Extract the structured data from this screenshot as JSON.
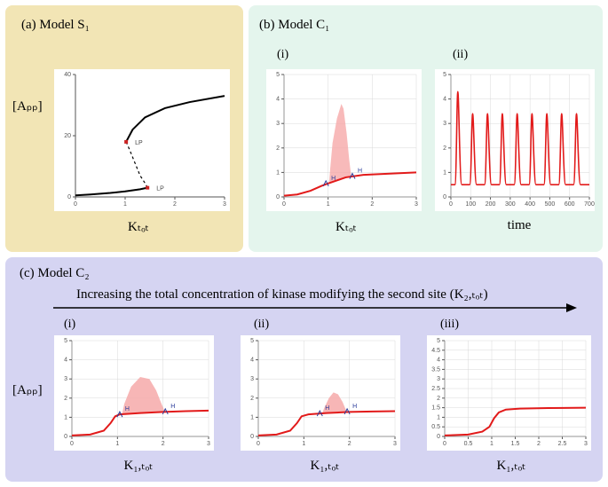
{
  "panel_a": {
    "bg": "#f2e5b5",
    "label": "(a) Model S₁",
    "y_axis": "[Aₚₚ]",
    "x_axis": "Kₜₒₜ",
    "chart": {
      "type": "bifurcation",
      "xlim": [
        0,
        3
      ],
      "ylim": [
        0,
        40
      ],
      "xticks": [
        0,
        1,
        2,
        3
      ],
      "yticks": [
        0,
        20,
        40
      ],
      "line_color": "#000000",
      "line_width": 2,
      "dash_color": "#000000",
      "lp_color": "#cc2222",
      "lp_labels": [
        "LP",
        "LP"
      ],
      "lp_points": [
        [
          1.02,
          18
        ],
        [
          1.45,
          3
        ]
      ],
      "lower_branch": [
        [
          0,
          0.5
        ],
        [
          0.3,
          0.8
        ],
        [
          0.7,
          1.3
        ],
        [
          1.0,
          1.8
        ],
        [
          1.3,
          2.5
        ],
        [
          1.45,
          3.0
        ]
      ],
      "upper_branch": [
        [
          1.02,
          18
        ],
        [
          1.15,
          22
        ],
        [
          1.4,
          26
        ],
        [
          1.8,
          29
        ],
        [
          2.3,
          31
        ],
        [
          3.0,
          33
        ]
      ],
      "dashed": [
        [
          1.02,
          18
        ],
        [
          1.1,
          15
        ],
        [
          1.2,
          11
        ],
        [
          1.3,
          7
        ],
        [
          1.4,
          4.5
        ],
        [
          1.45,
          3
        ]
      ],
      "bg": "#ffffff"
    }
  },
  "panel_b": {
    "bg": "#e4f5ed",
    "label": "(b) Model C₁",
    "sub_i": "(i)",
    "sub_ii": "(ii)",
    "chart_i": {
      "type": "bifurcation-oscillation",
      "x_axis": "Kₜₒₜ",
      "y_axis_ticks": [
        0,
        1,
        2,
        3,
        4,
        5
      ],
      "xlim": [
        0,
        3
      ],
      "ylim": [
        0,
        5
      ],
      "xticks": [
        0,
        1,
        2,
        3
      ],
      "line_color": "#e21a1a",
      "line_width": 2,
      "region_fill": "#f6a9a9",
      "region_opacity": 0.8,
      "h_color": "#2a3b9a",
      "h_labels": [
        "H",
        "H"
      ],
      "h_points": [
        [
          0.95,
          0.55
        ],
        [
          1.55,
          0.85
        ]
      ],
      "curve": [
        [
          0,
          0.05
        ],
        [
          0.3,
          0.1
        ],
        [
          0.6,
          0.25
        ],
        [
          0.85,
          0.45
        ],
        [
          1.0,
          0.55
        ],
        [
          1.4,
          0.8
        ],
        [
          1.8,
          0.9
        ],
        [
          2.4,
          0.95
        ],
        [
          3.0,
          1.0
        ]
      ],
      "region": [
        [
          1.02,
          0.55
        ],
        [
          1.05,
          1.2
        ],
        [
          1.1,
          2.2
        ],
        [
          1.2,
          3.2
        ],
        [
          1.3,
          3.8
        ],
        [
          1.35,
          3.6
        ],
        [
          1.42,
          2.6
        ],
        [
          1.48,
          1.5
        ],
        [
          1.52,
          0.9
        ],
        [
          1.55,
          0.85
        ]
      ],
      "bg": "#ffffff"
    },
    "chart_ii": {
      "type": "timeseries-oscillation",
      "x_axis": "time",
      "xlim": [
        0,
        700
      ],
      "ylim": [
        0,
        5
      ],
      "xticks": [
        0,
        100,
        200,
        300,
        400,
        500,
        600,
        700
      ],
      "yticks": [
        0,
        1,
        2,
        3,
        4,
        5
      ],
      "line_color": "#e21a1a",
      "line_width": 1.6,
      "n_peaks": 9,
      "period": 75,
      "amp_first": 4.3,
      "amp_rest": 3.4,
      "baseline": 0.5,
      "bg": "#ffffff"
    }
  },
  "panel_c": {
    "bg": "#d5d4f2",
    "label": "(c) Model C₂",
    "arrow_text": "Increasing the total concentration of kinase modifying the second site (K₂,ₜₒₜ)",
    "y_axis": "[Aₚₚ]",
    "x_axis": "K₁,ₜₒₜ",
    "sub_i": "(i)",
    "sub_ii": "(ii)",
    "sub_iii": "(iii)",
    "chart_i": {
      "xlim": [
        0,
        3
      ],
      "ylim": [
        0,
        5
      ],
      "xticks": [
        0,
        1,
        2,
        3
      ],
      "yticks": [
        0,
        1,
        2,
        3,
        4,
        5
      ],
      "line_color": "#e21a1a",
      "line_width": 2,
      "region_fill": "#f6a9a9",
      "h_points": [
        [
          1.05,
          1.15
        ],
        [
          2.05,
          1.3
        ]
      ],
      "h_labels": [
        "H",
        "H"
      ],
      "curve": [
        [
          0,
          0.05
        ],
        [
          0.4,
          0.1
        ],
        [
          0.7,
          0.3
        ],
        [
          0.85,
          0.7
        ],
        [
          0.95,
          1.05
        ],
        [
          1.05,
          1.15
        ],
        [
          1.5,
          1.22
        ],
        [
          2.0,
          1.28
        ],
        [
          2.5,
          1.32
        ],
        [
          3.0,
          1.35
        ]
      ],
      "region": [
        [
          1.1,
          1.15
        ],
        [
          1.15,
          1.7
        ],
        [
          1.3,
          2.6
        ],
        [
          1.5,
          3.1
        ],
        [
          1.7,
          3.0
        ],
        [
          1.85,
          2.4
        ],
        [
          1.95,
          1.8
        ],
        [
          2.02,
          1.4
        ],
        [
          2.05,
          1.3
        ]
      ],
      "bg": "#ffffff"
    },
    "chart_ii": {
      "xlim": [
        0,
        3
      ],
      "ylim": [
        0,
        5
      ],
      "xticks": [
        0,
        1,
        2,
        3
      ],
      "yticks": [
        0,
        1,
        2,
        3,
        4,
        5
      ],
      "line_color": "#e21a1a",
      "line_width": 2,
      "region_fill": "#f6a9a9",
      "h_points": [
        [
          1.35,
          1.2
        ],
        [
          1.95,
          1.3
        ]
      ],
      "h_labels": [
        "H",
        "H"
      ],
      "curve": [
        [
          0,
          0.05
        ],
        [
          0.4,
          0.1
        ],
        [
          0.7,
          0.3
        ],
        [
          0.85,
          0.7
        ],
        [
          0.95,
          1.05
        ],
        [
          1.1,
          1.15
        ],
        [
          1.5,
          1.22
        ],
        [
          2.0,
          1.28
        ],
        [
          2.5,
          1.3
        ],
        [
          3.0,
          1.32
        ]
      ],
      "region": [
        [
          1.4,
          1.2
        ],
        [
          1.45,
          1.5
        ],
        [
          1.55,
          2.0
        ],
        [
          1.65,
          2.3
        ],
        [
          1.75,
          2.2
        ],
        [
          1.85,
          1.8
        ],
        [
          1.92,
          1.4
        ],
        [
          1.95,
          1.3
        ]
      ],
      "bg": "#ffffff"
    },
    "chart_iii": {
      "xlim": [
        0,
        3
      ],
      "ylim": [
        0,
        5
      ],
      "xticks": [
        0,
        0.5,
        1,
        1.5,
        2,
        2.5,
        3
      ],
      "yticks": [
        0,
        0.5,
        1,
        1.5,
        2,
        2.5,
        3,
        3.5,
        4,
        4.5,
        5
      ],
      "line_color": "#e21a1a",
      "line_width": 2,
      "curve": [
        [
          0,
          0.05
        ],
        [
          0.5,
          0.1
        ],
        [
          0.8,
          0.25
        ],
        [
          0.95,
          0.5
        ],
        [
          1.05,
          0.95
        ],
        [
          1.15,
          1.25
        ],
        [
          1.3,
          1.4
        ],
        [
          1.6,
          1.45
        ],
        [
          2.2,
          1.48
        ],
        [
          3.0,
          1.5
        ]
      ],
      "bg": "#ffffff"
    }
  },
  "colors": {
    "grid": "#bdbdbd",
    "axis": "#555555"
  }
}
